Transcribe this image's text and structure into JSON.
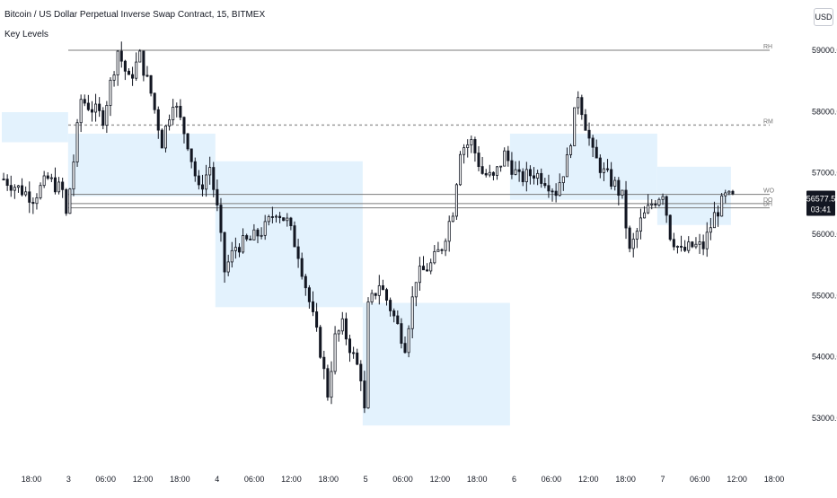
{
  "header": {
    "title": "Bitcoin / US Dollar Perpetual Inverse Swap Contract, 15, BITMEX",
    "indicator": "Key Levels",
    "currency": "USD"
  },
  "colors": {
    "candle": "#131722",
    "zone": "#e3f2fd",
    "level_solid": "#7b7b7b",
    "level_dashed": "#9e9e9e",
    "price_tag_bg": "#131722",
    "price_tag_text": "#ffffff",
    "axis_text": "#131722"
  },
  "chart_data": {
    "type": "candlestick",
    "title": "Bitcoin / US Dollar Perpetual Inverse Swap Contract, 15, BITMEX",
    "ylim": [
      52700,
      59600
    ],
    "y_ticks": [
      53000,
      54000,
      55000,
      56000,
      57000,
      58000,
      59000
    ],
    "y_tick_labels": [
      "53000.0",
      "54000.0",
      "55000.0",
      "56000.0",
      "57000.0",
      "58000.0",
      "59000.0"
    ],
    "x_ticks": [
      "18:00",
      "3",
      "06:00",
      "12:00",
      "18:00",
      "4",
      "06:00",
      "12:00",
      "18:00",
      "5",
      "06:00",
      "12:00",
      "18:00",
      "6",
      "06:00",
      "12:00",
      "18:00",
      "7",
      "06:00",
      "12:00",
      "18:00"
    ],
    "grid": false,
    "last_price": "56577.5",
    "countdown": "03:41",
    "key_levels": [
      {
        "label": "RH",
        "price": 59000,
        "style": "solid"
      },
      {
        "label": "RM",
        "price": 57780,
        "style": "dashed"
      },
      {
        "label": "WO",
        "price": 56650,
        "style": "solid"
      },
      {
        "label": "DO",
        "price": 56500,
        "style": "solid"
      },
      {
        "label": "DH",
        "price": 56430,
        "style": "solid"
      }
    ],
    "zones": [
      {
        "start": 0,
        "end": 18,
        "high": 57990,
        "low": 57500
      },
      {
        "start": 18,
        "end": 58,
        "high": 57640,
        "low": 56620
      },
      {
        "start": 58,
        "end": 98,
        "high": 57190,
        "low": 54810
      },
      {
        "start": 98,
        "end": 138,
        "high": 54880,
        "low": 52880
      },
      {
        "start": 138,
        "end": 178,
        "high": 57640,
        "low": 56560
      },
      {
        "start": 178,
        "end": 198,
        "high": 57100,
        "low": 56150
      }
    ],
    "anchors": [
      [
        0,
        56900
      ],
      [
        4,
        56750
      ],
      [
        8,
        56600
      ],
      [
        12,
        56900
      ],
      [
        16,
        56700
      ],
      [
        17,
        56300
      ],
      [
        19,
        57200
      ],
      [
        21,
        58200
      ],
      [
        24,
        58050
      ],
      [
        27,
        57900
      ],
      [
        31,
        59000
      ],
      [
        34,
        58500
      ],
      [
        37,
        58900
      ],
      [
        40,
        58300
      ],
      [
        43,
        57500
      ],
      [
        46,
        58200
      ],
      [
        50,
        57500
      ],
      [
        53,
        56700
      ],
      [
        56,
        57100
      ],
      [
        58,
        56400
      ],
      [
        60,
        55400
      ],
      [
        63,
        55800
      ],
      [
        67,
        55900
      ],
      [
        71,
        56100
      ],
      [
        74,
        56400
      ],
      [
        77,
        56200
      ],
      [
        80,
        55700
      ],
      [
        83,
        54900
      ],
      [
        86,
        54100
      ],
      [
        88,
        53400
      ],
      [
        90,
        54300
      ],
      [
        92,
        54500
      ],
      [
        95,
        54000
      ],
      [
        97,
        53700
      ],
      [
        98,
        53100
      ],
      [
        99,
        54800
      ],
      [
        102,
        55200
      ],
      [
        105,
        54800
      ],
      [
        109,
        54200
      ],
      [
        112,
        55300
      ],
      [
        116,
        55500
      ],
      [
        119,
        55800
      ],
      [
        122,
        56400
      ],
      [
        124,
        57400
      ],
      [
        127,
        57500
      ],
      [
        130,
        57000
      ],
      [
        133,
        56900
      ],
      [
        136,
        57300
      ],
      [
        140,
        56900
      ],
      [
        144,
        57000
      ],
      [
        147,
        56900
      ],
      [
        150,
        56700
      ],
      [
        153,
        57200
      ],
      [
        156,
        58300
      ],
      [
        158,
        57800
      ],
      [
        160,
        57300
      ],
      [
        163,
        57000
      ],
      [
        166,
        56800
      ],
      [
        168,
        56600
      ],
      [
        170,
        55700
      ],
      [
        173,
        56200
      ],
      [
        176,
        56500
      ],
      [
        179,
        56700
      ],
      [
        181,
        56000
      ],
      [
        184,
        55700
      ],
      [
        187,
        55800
      ],
      [
        190,
        55800
      ],
      [
        193,
        56300
      ],
      [
        196,
        56600
      ],
      [
        198,
        56580
      ]
    ]
  }
}
